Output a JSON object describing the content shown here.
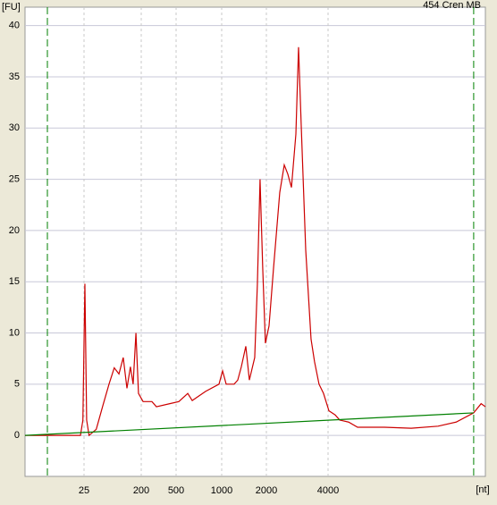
{
  "chart_data": {
    "type": "line",
    "title": "454 Cren MB",
    "ylabel": "[FU]",
    "xlabel": "[nt]",
    "xlim": [
      3,
      23500
    ],
    "xticks": [
      25,
      200,
      500,
      1000,
      2000,
      4000
    ],
    "ylim": [
      -4,
      41.8
    ],
    "yticks": [
      0,
      5,
      10,
      15,
      20,
      25,
      30,
      35,
      40
    ],
    "grid": true,
    "marker_lines": {
      "color": "#008000",
      "x": [
        6.7,
        20600
      ]
    },
    "series": [
      {
        "color": "#cc0000",
        "x": [
          3,
          6.7,
          22,
          24,
          25.8,
          27.5,
          30,
          39,
          49,
          62,
          75,
          89,
          104,
          119,
          135,
          149,
          165,
          181,
          210,
          265,
          298,
          424,
          521,
          597,
          639,
          783,
          960,
          1014,
          1072,
          1213,
          1283,
          1356,
          1454,
          1536,
          1669,
          1740,
          1813,
          1890,
          1970,
          2061,
          2167,
          2324,
          2445,
          2545,
          2651,
          2786,
          2871,
          2958,
          3112,
          3304,
          3436,
          3614,
          3801,
          4040,
          4335,
          4558,
          5042,
          5576,
          7545,
          10200,
          13800,
          16900,
          20600,
          22400,
          23500
        ],
        "values": [
          0,
          0,
          0,
          1.5,
          14.8,
          1.5,
          0,
          0.6,
          2.8,
          5,
          6.6,
          6,
          7.6,
          4.6,
          6.7,
          5,
          10,
          4.1,
          3.3,
          3.3,
          2.8,
          3.1,
          3.3,
          4.1,
          3.4,
          4.3,
          5,
          6.3,
          5,
          5,
          5.4,
          6.7,
          8.7,
          5.4,
          7.6,
          14.8,
          25,
          16.3,
          9,
          10.7,
          16.3,
          23.7,
          26.4,
          25.5,
          24.2,
          29.4,
          37.9,
          30.3,
          18.1,
          9.4,
          7.2,
          5,
          4.1,
          2.4,
          2,
          1.5,
          1.3,
          0.8,
          0.8,
          0.7,
          0.9,
          1.3,
          2.2,
          3.1,
          2.8
        ]
      },
      {
        "color": "#008000",
        "x": [
          3,
          20600
        ],
        "values": [
          0,
          2.2
        ]
      }
    ]
  }
}
